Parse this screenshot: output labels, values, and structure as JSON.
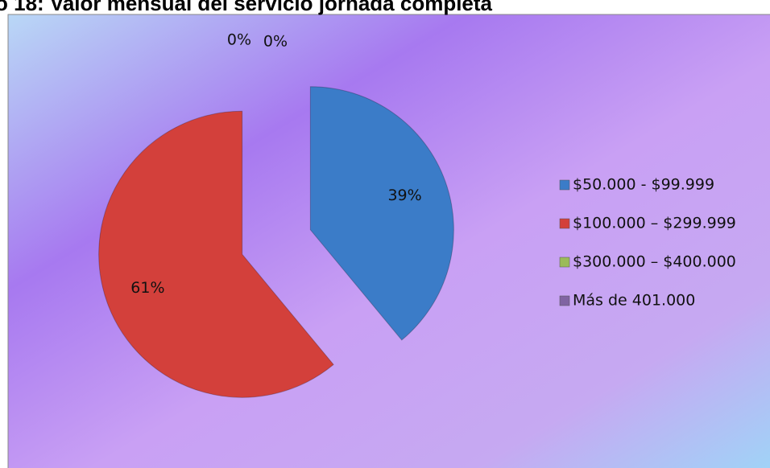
{
  "chart_data": {
    "type": "pie",
    "title": "o 18: Valor mensual del servicio jornada completa",
    "categories": [
      "$50.000 - $99.999",
      "$100.000 – $299.999",
      "$300.000 – $400.000",
      "Más de 401.000"
    ],
    "values": [
      39,
      61,
      0,
      0
    ],
    "value_labels": [
      "39%",
      "61%",
      "0%",
      "0%"
    ],
    "colors": [
      "#3b7cc8",
      "#d3403b",
      "#9bbb59",
      "#8064a2"
    ],
    "legend": "right"
  }
}
